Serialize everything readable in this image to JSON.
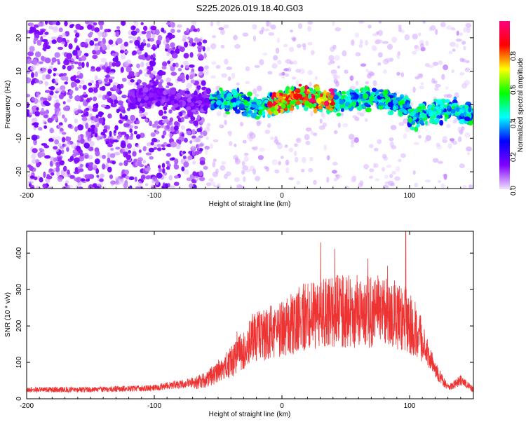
{
  "title": "S225.2026.019.18.40.G03",
  "chart_data": [
    {
      "type": "heatmap",
      "name": "spectrogram",
      "xlabel": "Height of straight line (km)",
      "ylabel": "Frequency (Hz)",
      "xlim": [
        -200,
        150
      ],
      "ylim": [
        -25,
        25
      ],
      "x_ticks": [
        -200,
        -100,
        0,
        100
      ],
      "y_ticks": [
        -20,
        -10,
        0,
        10,
        20
      ],
      "colorbar": {
        "label": "Normalized spectral amplitude",
        "range": [
          0,
          1
        ],
        "ticks": [
          "0.0",
          "0.2",
          "0.4",
          "0.6",
          "0.8"
        ],
        "colors": [
          "#f0e0ff",
          "#8000ff",
          "#0000ff",
          "#00ffff",
          "#00ff00",
          "#ffff00",
          "#ff0000",
          "#ff0080"
        ]
      },
      "features": [
        {
          "label": "scattered noise",
          "x_range": [
            -200,
            -60
          ],
          "freq_range": [
            -25,
            25
          ],
          "amplitude": 0.1
        },
        {
          "label": "sparse noise",
          "x_range": [
            -60,
            150
          ],
          "freq_range": [
            -25,
            25
          ],
          "amplitude": 0.03
        },
        {
          "label": "emerging signal",
          "x_range": [
            -120,
            -55
          ],
          "freq_center": 1.5,
          "amplitude": 0.15
        },
        {
          "label": "signal band",
          "x_range": [
            -55,
            100
          ],
          "freq_center": 1.0,
          "amplitude": 0.5
        },
        {
          "label": "signal band (strong)",
          "x_range": [
            -10,
            40
          ],
          "freq_center": 1.0,
          "amplitude": 0.9
        },
        {
          "label": "tail signal",
          "x_range": [
            100,
            150
          ],
          "freq_center": -2.0,
          "amplitude": 0.5
        }
      ]
    },
    {
      "type": "line",
      "name": "snr",
      "xlabel": "Height of straight line (km)",
      "ylabel": "SNR (10 * v/v)",
      "xlim": [
        -200,
        150
      ],
      "ylim": [
        0,
        460
      ],
      "x_ticks": [
        -200,
        -100,
        0,
        100
      ],
      "y_ticks": [
        0,
        100,
        200,
        300,
        400
      ],
      "color": "#ee3333",
      "series": [
        {
          "name": "SNR envelope",
          "x": [
            -200,
            -150,
            -100,
            -60,
            -40,
            -20,
            0,
            20,
            40,
            60,
            80,
            95,
            100,
            110,
            120,
            130,
            140,
            150
          ],
          "values": [
            25,
            25,
            30,
            50,
            100,
            170,
            190,
            230,
            240,
            240,
            240,
            230,
            210,
            160,
            80,
            30,
            50,
            25
          ]
        }
      ],
      "peak": {
        "x": 97,
        "y": 460
      }
    }
  ]
}
